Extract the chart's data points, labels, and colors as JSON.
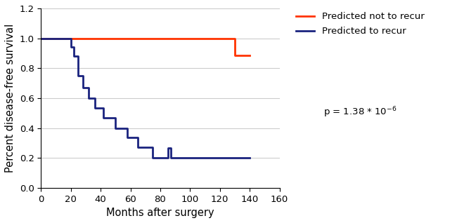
{
  "title": "",
  "xlabel": "Months after surgery",
  "ylabel": "Percent disease-free survival",
  "xlim": [
    0,
    160
  ],
  "ylim": [
    0,
    1.2
  ],
  "xticks": [
    0,
    20,
    40,
    60,
    80,
    100,
    120,
    140,
    160
  ],
  "yticks": [
    0,
    0.2,
    0.4,
    0.6,
    0.8,
    1.0,
    1.2
  ],
  "line_not_recur": {
    "x": [
      0,
      130,
      130,
      140
    ],
    "y": [
      1.0,
      1.0,
      0.885,
      0.885
    ],
    "color": "#FF3300",
    "linewidth": 2.0,
    "label": "Predicted not to recur"
  },
  "line_recur": {
    "x": [
      0,
      20,
      20,
      22,
      22,
      25,
      25,
      28,
      28,
      32,
      32,
      36,
      36,
      42,
      42,
      50,
      50,
      58,
      58,
      65,
      65,
      75,
      75,
      85,
      85,
      87,
      87,
      140
    ],
    "y": [
      1.0,
      1.0,
      0.94,
      0.94,
      0.88,
      0.88,
      0.75,
      0.75,
      0.67,
      0.67,
      0.6,
      0.6,
      0.535,
      0.535,
      0.47,
      0.47,
      0.4,
      0.4,
      0.335,
      0.335,
      0.27,
      0.27,
      0.2,
      0.2,
      0.265,
      0.265,
      0.2,
      0.2
    ],
    "color": "#1a237e",
    "linewidth": 2.0,
    "label": "Predicted to recur"
  },
  "pvalue_text": "p = 1.38 * 10$^{-6}$",
  "background_color": "#ffffff",
  "grid_color": "#cccccc",
  "legend_fontsize": 9.5,
  "axis_fontsize": 10.5,
  "tick_fontsize": 9.5
}
